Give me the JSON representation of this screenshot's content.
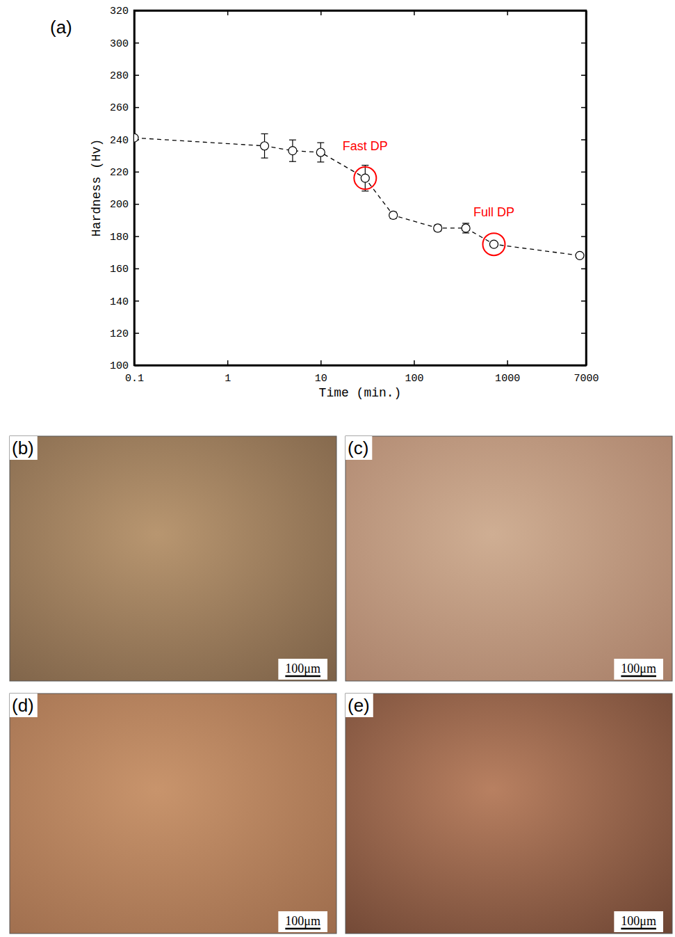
{
  "chart_data": {
    "type": "line",
    "label": "(a)",
    "x_label": "Time (min.)",
    "y_label": "Hardness (Hv)",
    "x": [
      0.1,
      2.5,
      5,
      10,
      30,
      60,
      180,
      360,
      720,
      6000
    ],
    "values": [
      241,
      236,
      233,
      232,
      216,
      193,
      185,
      185,
      175,
      168
    ],
    "errors": [
      0,
      7.5,
      6.7,
      6,
      8,
      2,
      2,
      3,
      1.5,
      1.5
    ],
    "color": "#000000",
    "marker": "circle",
    "line_style": "dashed",
    "log": "x",
    "xlim": [
      0.1,
      7000
    ],
    "xticks": [
      0.1,
      1,
      10,
      100,
      1000,
      7000
    ],
    "ylim": [
      100,
      320
    ],
    "yticks": [
      100,
      120,
      140,
      160,
      180,
      200,
      220,
      240,
      260,
      280,
      300,
      320
    ],
    "grid": false,
    "annotations": [
      {
        "text": "Fast DP",
        "x": 30,
        "y": 216,
        "color": "#ff0000"
      },
      {
        "text": "Full DP",
        "x": 720,
        "y": 175,
        "color": "#ff0000"
      }
    ]
  },
  "images": [
    {
      "label": "(b)",
      "scale_bar": "100μm"
    },
    {
      "label": "(c)",
      "scale_bar": "100μm"
    },
    {
      "label": "(d)",
      "scale_bar": "100μm"
    },
    {
      "label": "(e)",
      "scale_bar": "100μm"
    }
  ]
}
